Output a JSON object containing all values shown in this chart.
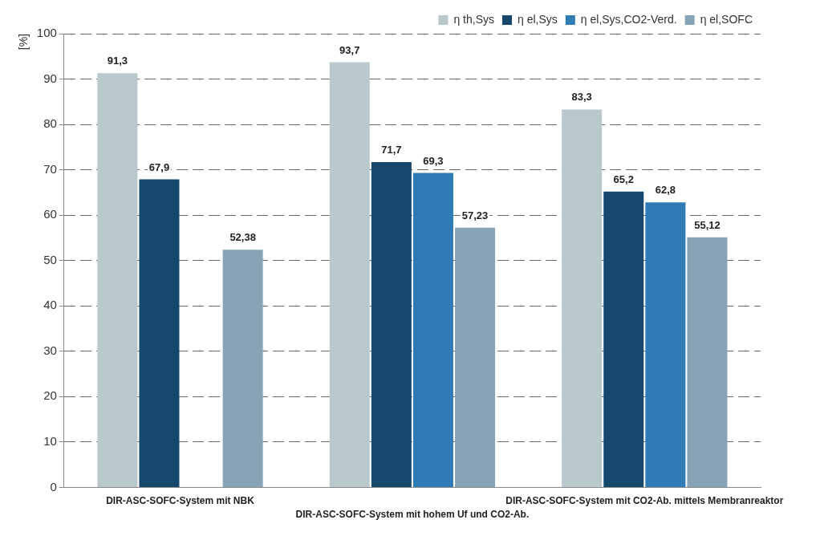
{
  "chart_data": {
    "type": "bar",
    "ylabel": "[%]",
    "categories": [
      "DIR-ASC-SOFC-System mit NBK",
      "DIR-ASC-SOFC-System mit hohem Uf und CO2-Ab.",
      "DIR-ASC-SOFC-System mit CO2-Ab. mittels Membranreaktor"
    ],
    "series": [
      {
        "name": "η th,Sys",
        "color": "#b9c9cb",
        "values": [
          91.3,
          93.7,
          83.3
        ],
        "value_labels": [
          "91,3",
          "93,7",
          "83,3"
        ]
      },
      {
        "name": "η el,Sys",
        "color": "#16486e",
        "values": [
          67.9,
          71.7,
          65.2
        ],
        "value_labels": [
          "67,9",
          "71,7",
          "65,2"
        ]
      },
      {
        "name": "η el,Sys,CO2-Verd.",
        "color": "#2f7bb5",
        "values": [
          null,
          69.3,
          62.8
        ],
        "value_labels": [
          null,
          "69,3",
          "62,8"
        ]
      },
      {
        "name": "η el,SOFC",
        "color": "#87a3b6",
        "values": [
          52.38,
          57.23,
          55.12
        ],
        "value_labels": [
          "52,38",
          "57,23",
          "55,12"
        ]
      }
    ],
    "ylim": [
      0,
      100
    ],
    "yticks": [
      0,
      10,
      20,
      30,
      40,
      50,
      60,
      70,
      80,
      90,
      100
    ],
    "grid": "y",
    "legend": "top right"
  }
}
